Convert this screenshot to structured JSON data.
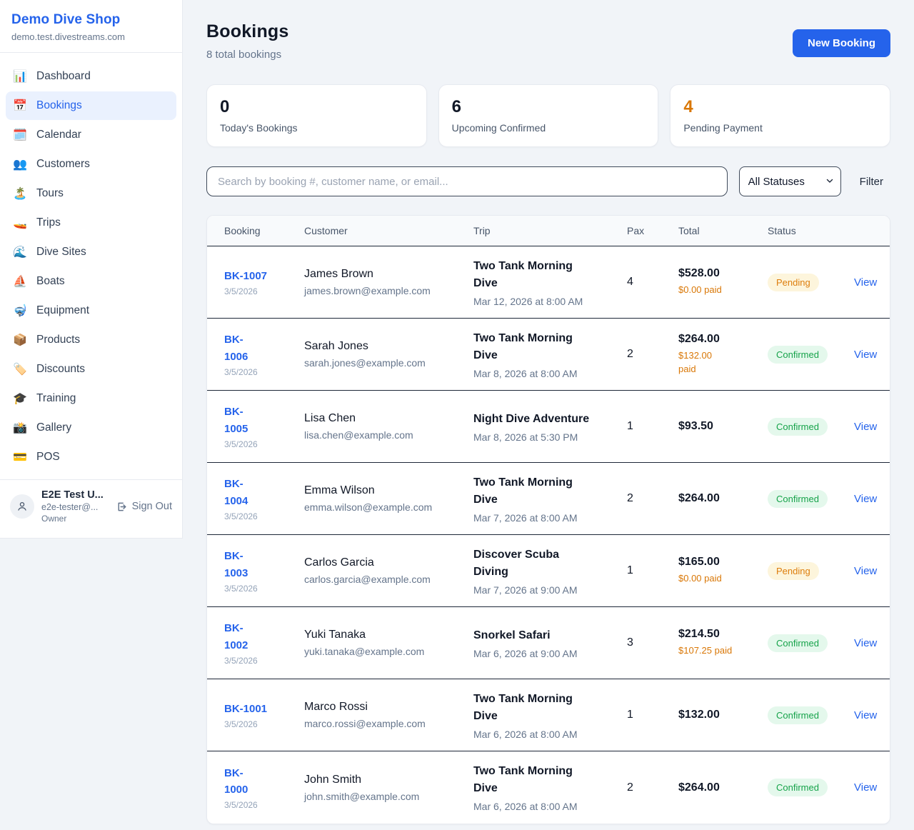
{
  "sidebar": {
    "title": "Demo Dive Shop",
    "subtitle": "demo.test.divestreams.com",
    "items": [
      {
        "label": "Dashboard",
        "icon": "📊"
      },
      {
        "label": "Bookings",
        "icon": "📅",
        "active": true
      },
      {
        "label": "Calendar",
        "icon": "🗓️"
      },
      {
        "label": "Customers",
        "icon": "👥"
      },
      {
        "label": "Tours",
        "icon": "🏝️"
      },
      {
        "label": "Trips",
        "icon": "🚤"
      },
      {
        "label": "Dive Sites",
        "icon": "🌊"
      },
      {
        "label": "Boats",
        "icon": "⛵"
      },
      {
        "label": "Equipment",
        "icon": "🤿"
      },
      {
        "label": "Products",
        "icon": "📦"
      },
      {
        "label": "Discounts",
        "icon": "🏷️"
      },
      {
        "label": "Training",
        "icon": "🎓"
      },
      {
        "label": "Gallery",
        "icon": "📸"
      },
      {
        "label": "POS",
        "icon": "💳"
      }
    ],
    "user": {
      "name": "E2E Test U...",
      "email": "e2e-tester@...",
      "role": "Owner",
      "sign_out_label": "Sign Out"
    }
  },
  "header": {
    "title": "Bookings",
    "subtitle": "8 total bookings",
    "new_booking_label": "New Booking"
  },
  "stats": [
    {
      "value": "0",
      "label": "Today's Bookings",
      "color": "#111827"
    },
    {
      "value": "6",
      "label": "Upcoming Confirmed",
      "color": "#111827"
    },
    {
      "value": "4",
      "label": "Pending Payment",
      "color": "#d97706"
    }
  ],
  "controls": {
    "search_placeholder": "Search by booking #, customer name, or email...",
    "status_filter_value": "All Statuses",
    "filter_label": "Filter"
  },
  "table": {
    "columns": [
      "Booking",
      "Customer",
      "Trip",
      "Pax",
      "Total",
      "Status"
    ],
    "action_label": "View",
    "rows": [
      {
        "id": "BK-1007",
        "id_display": "BK-1007",
        "date": "3/5/2026",
        "customer": "James Brown",
        "email": "james.brown@example.com",
        "trip": "Two Tank Morning\nDive",
        "trip_datetime": "Mar 12, 2026 at 8:00 AM",
        "pax": "4",
        "total": "$528.00",
        "paid": "$0.00 paid",
        "status": "Pending"
      },
      {
        "id": "BK-1006",
        "id_display": "BK-\n1006",
        "date": "3/5/2026",
        "customer": "Sarah Jones",
        "email": "sarah.jones@example.com",
        "trip": "Two Tank Morning\nDive",
        "trip_datetime": "Mar 8, 2026 at 8:00 AM",
        "pax": "2",
        "total": "$264.00",
        "paid": "$132.00\npaid",
        "status": "Confirmed"
      },
      {
        "id": "BK-1005",
        "id_display": "BK-\n1005",
        "date": "3/5/2026",
        "customer": "Lisa Chen",
        "email": "lisa.chen@example.com",
        "trip": "Night Dive Adventure",
        "trip_datetime": "Mar 8, 2026 at 5:30 PM",
        "pax": "1",
        "total": "$93.50",
        "paid": "",
        "status": "Confirmed"
      },
      {
        "id": "BK-1004",
        "id_display": "BK-\n1004",
        "date": "3/5/2026",
        "customer": "Emma Wilson",
        "email": "emma.wilson@example.com",
        "trip": "Two Tank Morning\nDive",
        "trip_datetime": "Mar 7, 2026 at 8:00 AM",
        "pax": "2",
        "total": "$264.00",
        "paid": "",
        "status": "Confirmed"
      },
      {
        "id": "BK-1003",
        "id_display": "BK-\n1003",
        "date": "3/5/2026",
        "customer": "Carlos Garcia",
        "email": "carlos.garcia@example.com",
        "trip": "Discover Scuba\nDiving",
        "trip_datetime": "Mar 7, 2026 at 9:00 AM",
        "pax": "1",
        "total": "$165.00",
        "paid": "$0.00 paid",
        "status": "Pending"
      },
      {
        "id": "BK-1002",
        "id_display": "BK-\n1002",
        "date": "3/5/2026",
        "customer": "Yuki Tanaka",
        "email": "yuki.tanaka@example.com",
        "trip": "Snorkel Safari",
        "trip_datetime": "Mar 6, 2026 at 9:00 AM",
        "pax": "3",
        "total": "$214.50",
        "paid": "$107.25 paid",
        "status": "Confirmed"
      },
      {
        "id": "BK-1001",
        "id_display": "BK-1001",
        "date": "3/5/2026",
        "customer": "Marco Rossi",
        "email": "marco.rossi@example.com",
        "trip": "Two Tank Morning\nDive",
        "trip_datetime": "Mar 6, 2026 at 8:00 AM",
        "pax": "1",
        "total": "$132.00",
        "paid": "",
        "status": "Confirmed"
      },
      {
        "id": "BK-1000",
        "id_display": "BK-\n1000",
        "date": "3/5/2026",
        "customer": "John Smith",
        "email": "john.smith@example.com",
        "trip": "Two Tank Morning\nDive",
        "trip_datetime": "Mar 6, 2026 at 8:00 AM",
        "pax": "2",
        "total": "$264.00",
        "paid": "",
        "status": "Confirmed"
      }
    ]
  },
  "colors": {
    "accent_blue": "#2563eb",
    "pending_orange": "#d97706",
    "confirmed_green": "#16a34a",
    "page_bg": "#f1f4f8"
  }
}
